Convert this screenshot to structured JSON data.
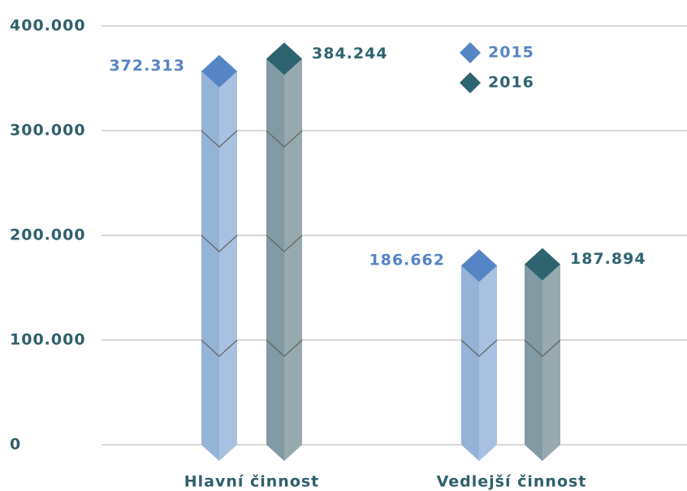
{
  "chart_data": {
    "type": "bar",
    "categories": [
      "Hlavní činnost",
      "Vedlejší činnost"
    ],
    "series": [
      {
        "name": "2015",
        "color": "#5585c5",
        "values": [
          372313,
          186662
        ],
        "value_labels": [
          "372.313",
          "186.662"
        ]
      },
      {
        "name": "2016",
        "color": "#2e6470",
        "values": [
          384244,
          187894
        ],
        "value_labels": [
          "384.244",
          "187.894"
        ]
      }
    ],
    "ylim": [
      0,
      400000
    ],
    "yticks": [
      0,
      {
        "value": 100000,
        "label": "100.000"
      },
      {
        "value": 200000,
        "label": "200.000"
      },
      {
        "value": 300000,
        "label": "300.000"
      },
      {
        "value": 400000,
        "label": "400.000"
      }
    ],
    "grid": true,
    "legend": "top-right"
  }
}
